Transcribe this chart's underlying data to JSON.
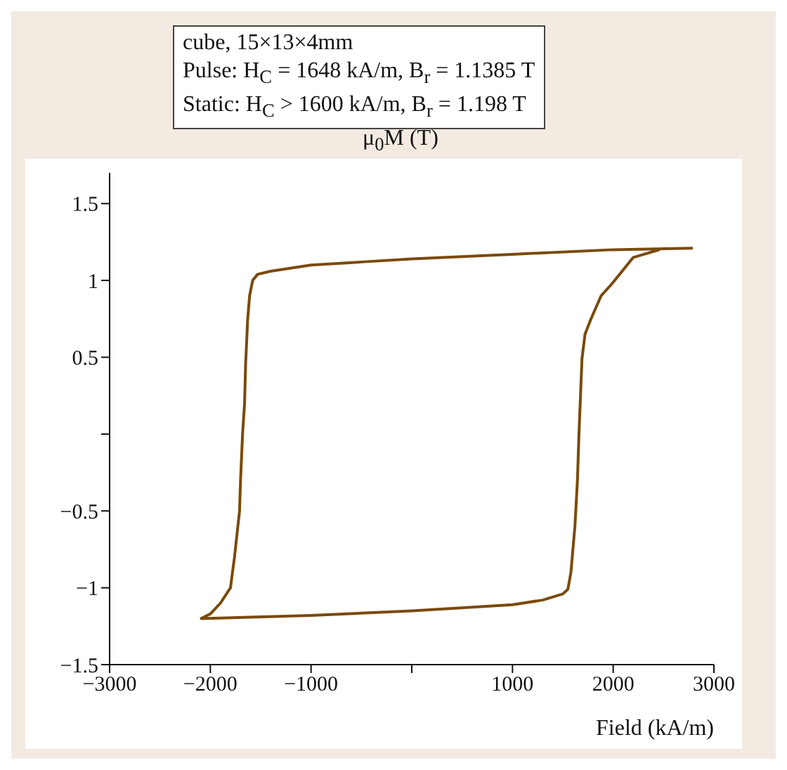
{
  "chart_data": {
    "type": "line",
    "xlabel": "Field (kA/m)",
    "ylabel": "μ$_{0}$M (T)",
    "annotations": [
      "cube, 15×13×4mm",
      "Pulse: H$_{C}$ = 1648 kA/m, B$_{r}$ = 1.1385 T",
      "Static: H$_{C}$ > 1600 kA/m, B$_{r}$ = 1.198 T"
    ],
    "series": [
      {
        "color": "#7a4a0a",
        "x": [
          2790,
          2000,
          1000,
          0,
          -500,
          -1000,
          -1400,
          -1530,
          -1580,
          -1610,
          -1630,
          -1650,
          -1660,
          -1680,
          -1700,
          -1710,
          -1760,
          -1800,
          -1900,
          -2000,
          -2090,
          -1000,
          0,
          1000,
          1300,
          1500,
          1550,
          1580,
          1620,
          1645,
          1660,
          1690,
          1720,
          1780,
          1880,
          1990,
          2200,
          2460
        ],
        "values": [
          1.21,
          1.2,
          1.17,
          1.14,
          1.12,
          1.1,
          1.06,
          1.04,
          1.0,
          0.9,
          0.74,
          0.45,
          0.2,
          0,
          -0.3,
          -0.5,
          -0.8,
          -1.0,
          -1.1,
          -1.17,
          -1.2,
          -1.18,
          -1.15,
          -1.11,
          -1.08,
          -1.04,
          -1.01,
          -0.9,
          -0.6,
          -0.3,
          0,
          0.49,
          0.65,
          0.75,
          0.9,
          0.98,
          1.15,
          1.2
        ]
      }
    ],
    "xlim": [
      -3000,
      3000
    ],
    "xticks": [
      {
        "value": -3000,
        "label": "−3000"
      },
      {
        "value": -2000,
        "label": "−2000"
      },
      {
        "value": -1000,
        "label": "−1000"
      },
      {
        "value": 0,
        "label": null
      },
      1000,
      2000,
      3000
    ],
    "ylim": [
      -1.5,
      1.7
    ],
    "yticks": [
      {
        "value": -1.5,
        "label": "−1.5"
      },
      {
        "value": -1,
        "label": "−1"
      },
      {
        "value": -0.5,
        "label": "−0.5"
      },
      {
        "value": 0,
        "label": null
      },
      0.5,
      1,
      1.5
    ],
    "marker": "none",
    "line_style": "solid",
    "grid": false
  }
}
